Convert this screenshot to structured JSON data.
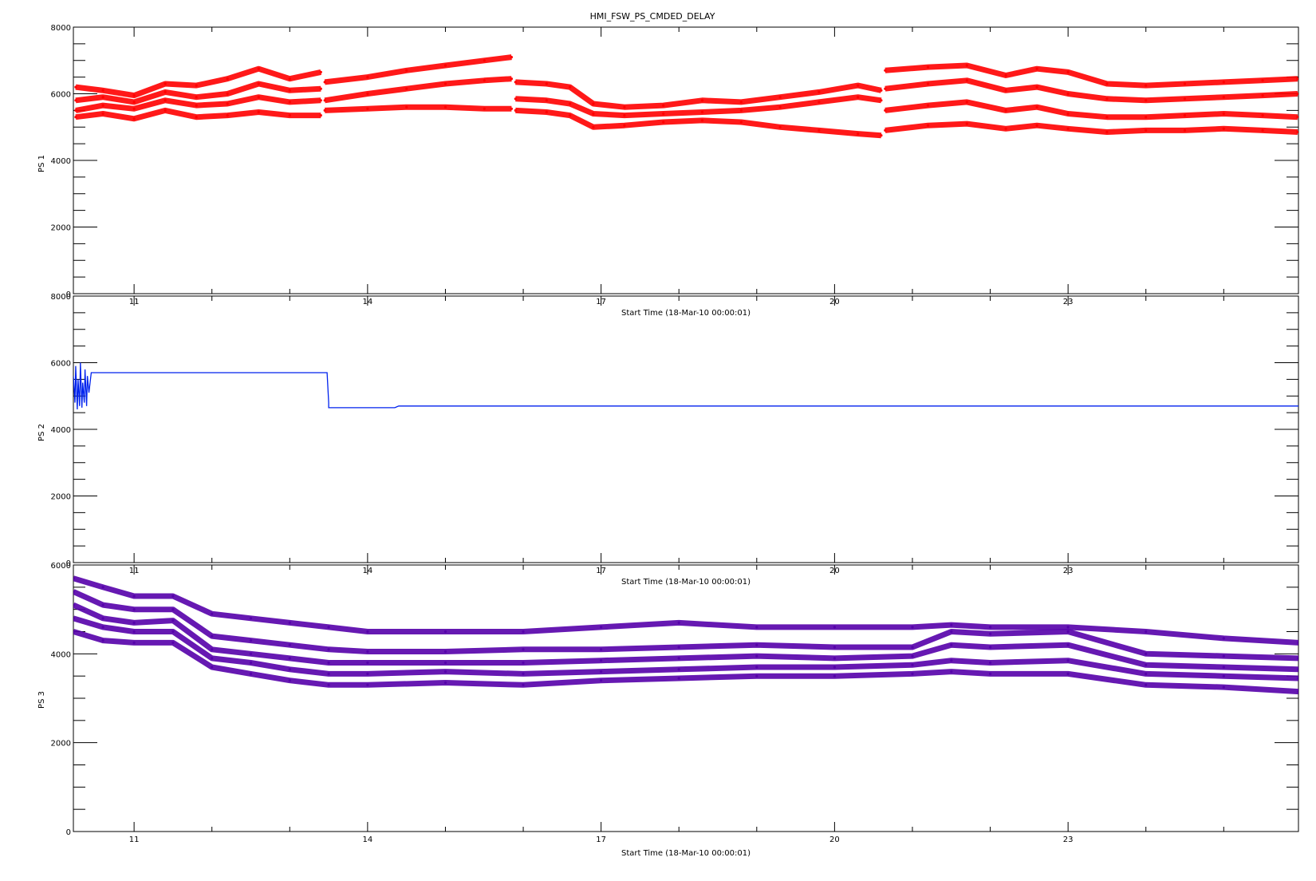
{
  "title": "HMI_FSW_PS_CMDED_DELAY",
  "chart_data": [
    {
      "type": "scatter",
      "ylabel": "PS 1",
      "xlabel": "Start Time (18-Mar-10 00:00:01)",
      "xlim": [
        10.22,
        25.96
      ],
      "ylim": [
        0,
        8000
      ],
      "yticks": [
        0,
        2000,
        4000,
        6000,
        8000
      ],
      "ytick_labels": [
        "0",
        "2000",
        "4000",
        "6000",
        "8000"
      ],
      "xticks": [
        11,
        14,
        17,
        20,
        23
      ],
      "xtick_labels": [
        "11",
        "14",
        "17",
        "20",
        "23"
      ],
      "color": "#ff0000",
      "series": [
        {
          "x": [
            10.25,
            10.6,
            11.0,
            11.4,
            11.8,
            12.2,
            12.6,
            13.0,
            13.4
          ],
          "values": [
            6200,
            6100,
            5950,
            6300,
            6250,
            6450,
            6750,
            6450,
            6650
          ]
        },
        {
          "x": [
            10.25,
            10.6,
            11.0,
            11.4,
            11.8,
            12.2,
            12.6,
            13.0,
            13.4
          ],
          "values": [
            5800,
            5900,
            5750,
            6050,
            5900,
            6000,
            6300,
            6100,
            6150
          ]
        },
        {
          "x": [
            10.25,
            10.6,
            11.0,
            11.4,
            11.8,
            12.2,
            12.6,
            13.0,
            13.4
          ],
          "values": [
            5500,
            5650,
            5550,
            5800,
            5650,
            5700,
            5900,
            5750,
            5800
          ]
        },
        {
          "x": [
            10.25,
            10.6,
            11.0,
            11.4,
            11.8,
            12.2,
            12.6,
            13.0,
            13.4
          ],
          "values": [
            5300,
            5400,
            5250,
            5500,
            5300,
            5350,
            5450,
            5350,
            5350
          ]
        },
        {
          "x": [
            13.45,
            14.0,
            14.5,
            15.0,
            15.5,
            15.85
          ],
          "values": [
            6350,
            6500,
            6700,
            6850,
            7000,
            7100
          ]
        },
        {
          "x": [
            13.45,
            14.0,
            14.5,
            15.0,
            15.5,
            15.85
          ],
          "values": [
            5800,
            6000,
            6150,
            6300,
            6400,
            6450
          ]
        },
        {
          "x": [
            13.45,
            14.0,
            14.5,
            15.0,
            15.5,
            15.85
          ],
          "values": [
            5500,
            5550,
            5600,
            5600,
            5550,
            5550
          ]
        },
        {
          "x": [
            15.9,
            16.3,
            16.6,
            16.9,
            17.3,
            17.8,
            18.3,
            18.8,
            19.3,
            19.8,
            20.3,
            20.6
          ],
          "values": [
            6350,
            6300,
            6200,
            5700,
            5600,
            5650,
            5800,
            5750,
            5900,
            6050,
            6250,
            6100
          ]
        },
        {
          "x": [
            15.9,
            16.3,
            16.6,
            16.9,
            17.3,
            17.8,
            18.3,
            18.8,
            19.3,
            19.8,
            20.3,
            20.6
          ],
          "values": [
            5850,
            5800,
            5700,
            5400,
            5350,
            5400,
            5450,
            5500,
            5600,
            5750,
            5900,
            5800
          ]
        },
        {
          "x": [
            15.9,
            16.3,
            16.6,
            16.9,
            17.3,
            17.8,
            18.3,
            18.8,
            19.3,
            19.8,
            20.3,
            20.6
          ],
          "values": [
            5500,
            5450,
            5350,
            5000,
            5050,
            5150,
            5200,
            5150,
            5000,
            4900,
            4800,
            4750
          ]
        },
        {
          "x": [
            20.65,
            21.2,
            21.7,
            22.2,
            22.6,
            23.0,
            23.5,
            24.0,
            24.5,
            25.0,
            25.5,
            25.95
          ],
          "values": [
            6700,
            6800,
            6850,
            6550,
            6750,
            6650,
            6300,
            6250,
            6300,
            6350,
            6400,
            6450
          ]
        },
        {
          "x": [
            20.65,
            21.2,
            21.7,
            22.2,
            22.6,
            23.0,
            23.5,
            24.0,
            24.5,
            25.0,
            25.5,
            25.95
          ],
          "values": [
            6150,
            6300,
            6400,
            6100,
            6200,
            6000,
            5850,
            5800,
            5850,
            5900,
            5950,
            6000
          ]
        },
        {
          "x": [
            20.65,
            21.2,
            21.7,
            22.2,
            22.6,
            23.0,
            23.5,
            24.0,
            24.5,
            25.0,
            25.5,
            25.95
          ],
          "values": [
            5500,
            5650,
            5750,
            5500,
            5600,
            5400,
            5300,
            5300,
            5350,
            5400,
            5350,
            5300
          ]
        },
        {
          "x": [
            20.65,
            21.2,
            21.7,
            22.2,
            22.6,
            23.0,
            23.5,
            24.0,
            24.5,
            25.0,
            25.5,
            25.95
          ],
          "values": [
            4900,
            5050,
            5100,
            4950,
            5050,
            4950,
            4850,
            4900,
            4900,
            4950,
            4900,
            4850
          ]
        }
      ]
    },
    {
      "type": "line",
      "ylabel": "PS 2",
      "xlabel": "Start Time (18-Mar-10 00:00:01)",
      "xlim": [
        10.22,
        25.96
      ],
      "ylim": [
        0,
        8000
      ],
      "yticks": [
        0,
        2000,
        4000,
        6000,
        8000
      ],
      "ytick_labels": [
        "0",
        "2000",
        "4000",
        "6000",
        "8000"
      ],
      "xticks": [
        11,
        14,
        17,
        20,
        23
      ],
      "xtick_labels": [
        "11",
        "14",
        "17",
        "20",
        "23"
      ],
      "color": "#0022ee",
      "series": [
        {
          "x": [
            10.22,
            10.24,
            10.25,
            10.27,
            10.28,
            10.3,
            10.31,
            10.33,
            10.34,
            10.36,
            10.37,
            10.39,
            10.4,
            10.42,
            10.45,
            11.0,
            12.0,
            13.0,
            13.48,
            13.5,
            13.5,
            14.0,
            14.35,
            14.4,
            15.0,
            17.0,
            20.0,
            23.0,
            25.96
          ],
          "values": [
            5600,
            4800,
            5900,
            4600,
            5500,
            4700,
            6000,
            4650,
            5400,
            4800,
            5800,
            4700,
            5600,
            5100,
            5700,
            5700,
            5700,
            5700,
            5700,
            4800,
            4650,
            4650,
            4650,
            4700,
            4700,
            4700,
            4700,
            4700,
            4700
          ]
        }
      ]
    },
    {
      "type": "scatter",
      "ylabel": "PS 3",
      "xlabel": "Start Time (18-Mar-10 00:00:01)",
      "xlim": [
        10.22,
        25.96
      ],
      "ylim": [
        0,
        6000
      ],
      "yticks": [
        0,
        2000,
        4000,
        6000
      ],
      "ytick_labels": [
        "0",
        "2000",
        "4000",
        "6000"
      ],
      "xticks": [
        11,
        14,
        17,
        20,
        23
      ],
      "xtick_labels": [
        "11",
        "14",
        "17",
        "20",
        "23"
      ],
      "color": "#5500aa",
      "series": [
        {
          "x": [
            10.22,
            10.6,
            11.0,
            11.5,
            12.0,
            12.5,
            13.0,
            13.5,
            14.0,
            15.0,
            16.0,
            17.0,
            18.0,
            19.0,
            20.0,
            21.0,
            21.5,
            22.0,
            23.0,
            24.0,
            25.0,
            25.96
          ],
          "values": [
            5700,
            5500,
            5300,
            5300,
            4900,
            4800,
            4700,
            4600,
            4500,
            4500,
            4500,
            4600,
            4700,
            4600,
            4600,
            4600,
            4650,
            4600,
            4600,
            4500,
            4350,
            4250
          ]
        },
        {
          "x": [
            10.22,
            10.6,
            11.0,
            11.5,
            12.0,
            12.5,
            13.0,
            13.5,
            14.0,
            15.0,
            16.0,
            17.0,
            18.0,
            19.0,
            20.0,
            21.0,
            21.5,
            22.0,
            23.0,
            24.0,
            25.0,
            25.96
          ],
          "values": [
            5400,
            5100,
            5000,
            5000,
            4400,
            4300,
            4200,
            4100,
            4050,
            4050,
            4100,
            4100,
            4150,
            4200,
            4150,
            4150,
            4500,
            4450,
            4500,
            4000,
            3950,
            3900
          ]
        },
        {
          "x": [
            10.22,
            10.6,
            11.0,
            11.5,
            12.0,
            12.5,
            13.0,
            13.5,
            14.0,
            15.0,
            16.0,
            17.0,
            18.0,
            19.0,
            20.0,
            21.0,
            21.5,
            22.0,
            23.0,
            24.0,
            25.0,
            25.96
          ],
          "values": [
            5100,
            4800,
            4700,
            4750,
            4100,
            4000,
            3900,
            3800,
            3800,
            3800,
            3800,
            3850,
            3900,
            3950,
            3900,
            3950,
            4200,
            4150,
            4200,
            3750,
            3700,
            3650
          ]
        },
        {
          "x": [
            10.22,
            10.6,
            11.0,
            11.5,
            12.0,
            12.5,
            13.0,
            13.5,
            14.0,
            15.0,
            16.0,
            17.0,
            18.0,
            19.0,
            20.0,
            21.0,
            21.5,
            22.0,
            23.0,
            24.0,
            25.0,
            25.96
          ],
          "values": [
            4800,
            4600,
            4500,
            4500,
            3900,
            3800,
            3650,
            3550,
            3550,
            3600,
            3550,
            3600,
            3650,
            3700,
            3700,
            3750,
            3850,
            3800,
            3850,
            3550,
            3500,
            3450
          ]
        },
        {
          "x": [
            10.22,
            10.6,
            11.0,
            11.5,
            12.0,
            12.5,
            13.0,
            13.5,
            14.0,
            15.0,
            16.0,
            17.0,
            18.0,
            19.0,
            20.0,
            21.0,
            21.5,
            22.0,
            23.0,
            24.0,
            25.0,
            25.96
          ],
          "values": [
            4500,
            4300,
            4250,
            4250,
            3700,
            3550,
            3400,
            3300,
            3300,
            3350,
            3300,
            3400,
            3450,
            3500,
            3500,
            3550,
            3600,
            3550,
            3550,
            3300,
            3250,
            3150
          ]
        }
      ]
    }
  ]
}
